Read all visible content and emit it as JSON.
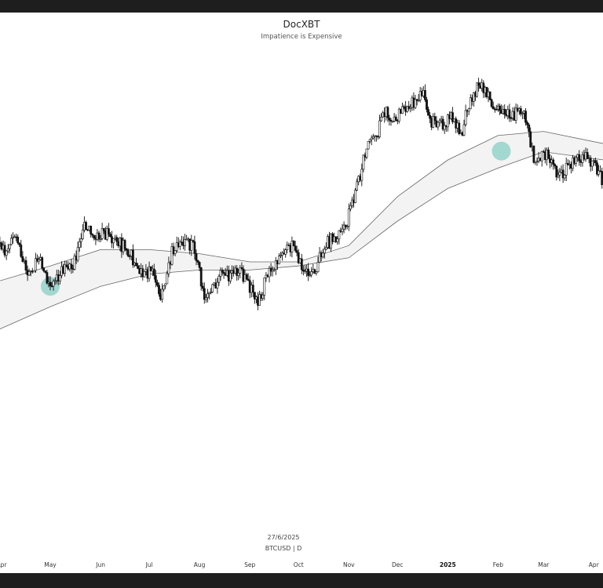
{
  "header": {
    "title": "DocXBT",
    "subtitle": "Impatience is Expensive"
  },
  "footer": {
    "date": "27/6/2025",
    "symbol": "BTCUSD | D"
  },
  "chart_data": {
    "type": "candlestick",
    "title": "DocXBT",
    "subtitle": "Impatience is Expensive",
    "xlabel": "",
    "ylabel": "",
    "grid": false,
    "legend": "none",
    "x_tick_labels": [
      "Apr",
      "May",
      "Jun",
      "Jul",
      "Aug",
      "Sep",
      "Oct",
      "Nov",
      "Dec",
      "2025",
      "Feb",
      "Mar",
      "Apr"
    ],
    "colors": {
      "up_candle": "#ffffff",
      "down_candle": "#111111",
      "band_fill": "#f3f3f3",
      "band_line": "#666666",
      "highlight": "#6cc6b9"
    },
    "highlights": [
      {
        "x": "2024-05-01",
        "label": ""
      },
      {
        "x": "2025-02-03",
        "label": ""
      }
    ],
    "series": [
      {
        "type": "candlestick",
        "price_path": [
          [
            "2024-03-28",
            0.62
          ],
          [
            "2024-04-03",
            0.57
          ],
          [
            "2024-04-10",
            0.61
          ],
          [
            "2024-04-17",
            0.51
          ],
          [
            "2024-04-24",
            0.56
          ],
          [
            "2024-05-01",
            0.48
          ],
          [
            "2024-05-08",
            0.53
          ],
          [
            "2024-05-15",
            0.54
          ],
          [
            "2024-05-22",
            0.63
          ],
          [
            "2024-05-29",
            0.61
          ],
          [
            "2024-06-05",
            0.62
          ],
          [
            "2024-06-12",
            0.6
          ],
          [
            "2024-06-19",
            0.57
          ],
          [
            "2024-06-26",
            0.53
          ],
          [
            "2024-07-03",
            0.52
          ],
          [
            "2024-07-08",
            0.47
          ],
          [
            "2024-07-15",
            0.57
          ],
          [
            "2024-07-22",
            0.6
          ],
          [
            "2024-07-29",
            0.58
          ],
          [
            "2024-08-05",
            0.45
          ],
          [
            "2024-08-12",
            0.51
          ],
          [
            "2024-08-19",
            0.52
          ],
          [
            "2024-08-26",
            0.53
          ],
          [
            "2024-09-02",
            0.48
          ],
          [
            "2024-09-06",
            0.46
          ],
          [
            "2024-09-13",
            0.52
          ],
          [
            "2024-09-20",
            0.56
          ],
          [
            "2024-09-27",
            0.59
          ],
          [
            "2024-10-04",
            0.53
          ],
          [
            "2024-10-10",
            0.52
          ],
          [
            "2024-10-17",
            0.59
          ],
          [
            "2024-10-24",
            0.61
          ],
          [
            "2024-10-31",
            0.65
          ],
          [
            "2024-11-06",
            0.73
          ],
          [
            "2024-11-12",
            0.83
          ],
          [
            "2024-11-19",
            0.86
          ],
          [
            "2024-11-22",
            0.92
          ],
          [
            "2024-11-28",
            0.9
          ],
          [
            "2024-12-05",
            0.92
          ],
          [
            "2024-12-12",
            0.95
          ],
          [
            "2024-12-17",
            0.98
          ],
          [
            "2024-12-20",
            0.9
          ],
          [
            "2024-12-27",
            0.88
          ],
          [
            "2025-01-03",
            0.91
          ],
          [
            "2025-01-09",
            0.86
          ],
          [
            "2025-01-15",
            0.95
          ],
          [
            "2025-01-20",
            0.98
          ],
          [
            "2025-01-27",
            0.95
          ],
          [
            "2025-02-03",
            0.92
          ],
          [
            "2025-02-10",
            0.91
          ],
          [
            "2025-02-17",
            0.92
          ],
          [
            "2025-02-24",
            0.79
          ],
          [
            "2025-03-03",
            0.82
          ],
          [
            "2025-03-10",
            0.76
          ],
          [
            "2025-03-17",
            0.78
          ],
          [
            "2025-03-24",
            0.81
          ],
          [
            "2025-03-31",
            0.79
          ],
          [
            "2025-04-07",
            0.75
          ]
        ]
      },
      {
        "type": "band",
        "upper": [
          [
            "2024-03-28",
            0.5
          ],
          [
            "2024-05-01",
            0.54
          ],
          [
            "2024-06-01",
            0.58
          ],
          [
            "2024-07-01",
            0.58
          ],
          [
            "2024-08-01",
            0.57
          ],
          [
            "2024-09-01",
            0.55
          ],
          [
            "2024-10-01",
            0.55
          ],
          [
            "2024-11-01",
            0.59
          ],
          [
            "2024-12-01",
            0.71
          ],
          [
            "2025-01-01",
            0.8
          ],
          [
            "2025-02-01",
            0.86
          ],
          [
            "2025-03-01",
            0.87
          ],
          [
            "2025-04-07",
            0.84
          ]
        ],
        "lower": [
          [
            "2024-03-28",
            0.38
          ],
          [
            "2024-05-01",
            0.44
          ],
          [
            "2024-06-01",
            0.49
          ],
          [
            "2024-07-01",
            0.52
          ],
          [
            "2024-08-01",
            0.53
          ],
          [
            "2024-09-01",
            0.53
          ],
          [
            "2024-10-01",
            0.54
          ],
          [
            "2024-11-01",
            0.56
          ],
          [
            "2024-12-01",
            0.65
          ],
          [
            "2025-01-01",
            0.73
          ],
          [
            "2025-02-01",
            0.78
          ],
          [
            "2025-03-01",
            0.82
          ],
          [
            "2025-04-07",
            0.8
          ]
        ]
      }
    ]
  }
}
